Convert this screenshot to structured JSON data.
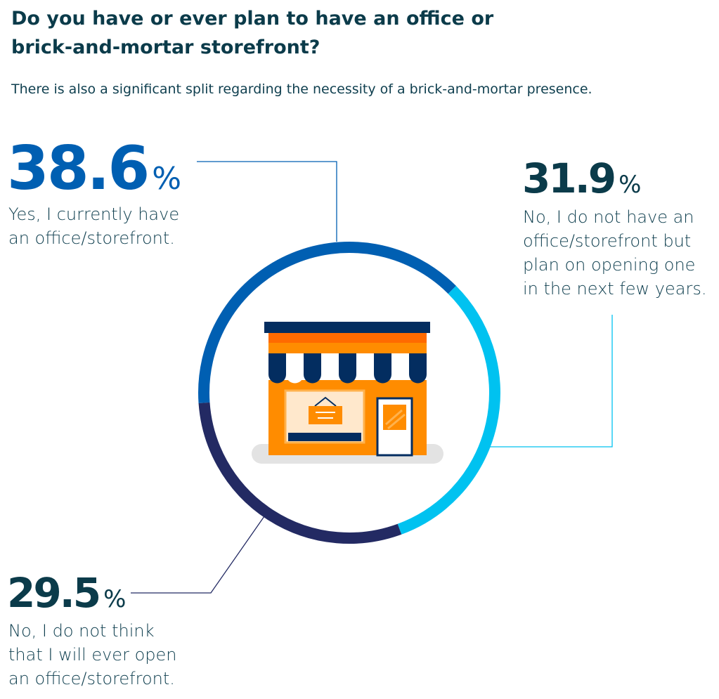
{
  "title": "Do you have or ever plan to have an office or brick-and-mortar storefront?",
  "subtitle": "There is also a significant split regarding the necessity of a brick-and-mortar presence.",
  "colors": {
    "yes": "#005fb2",
    "plan": "#00c2f0",
    "never": "#232a63",
    "store_orange": "#ff8c00",
    "store_navy": "#032d60"
  },
  "chart_data": {
    "type": "pie",
    "title": "Do you have or ever plan to have an office or brick-and-mortar storefront?",
    "subtitle": "There is also a significant split regarding the necessity of a brick-and-mortar presence.",
    "unit": "%",
    "slices": [
      {
        "key": "yes",
        "value": 38.6,
        "value_label": "38.6",
        "label_lines": [
          "Yes, I currently have",
          "an office/storefront."
        ],
        "color": "#005fb2"
      },
      {
        "key": "plan",
        "value": 31.9,
        "value_label": "31.9",
        "label_lines": [
          "No, I do not have an",
          "office/storefront but",
          "plan on opening one",
          "in the next few years."
        ],
        "color": "#00c2f0"
      },
      {
        "key": "never",
        "value": 29.5,
        "value_label": "29.5",
        "label_lines": [
          "No, I do not think",
          "that I will ever open",
          "an office/storefront."
        ],
        "color": "#232a63"
      }
    ]
  }
}
